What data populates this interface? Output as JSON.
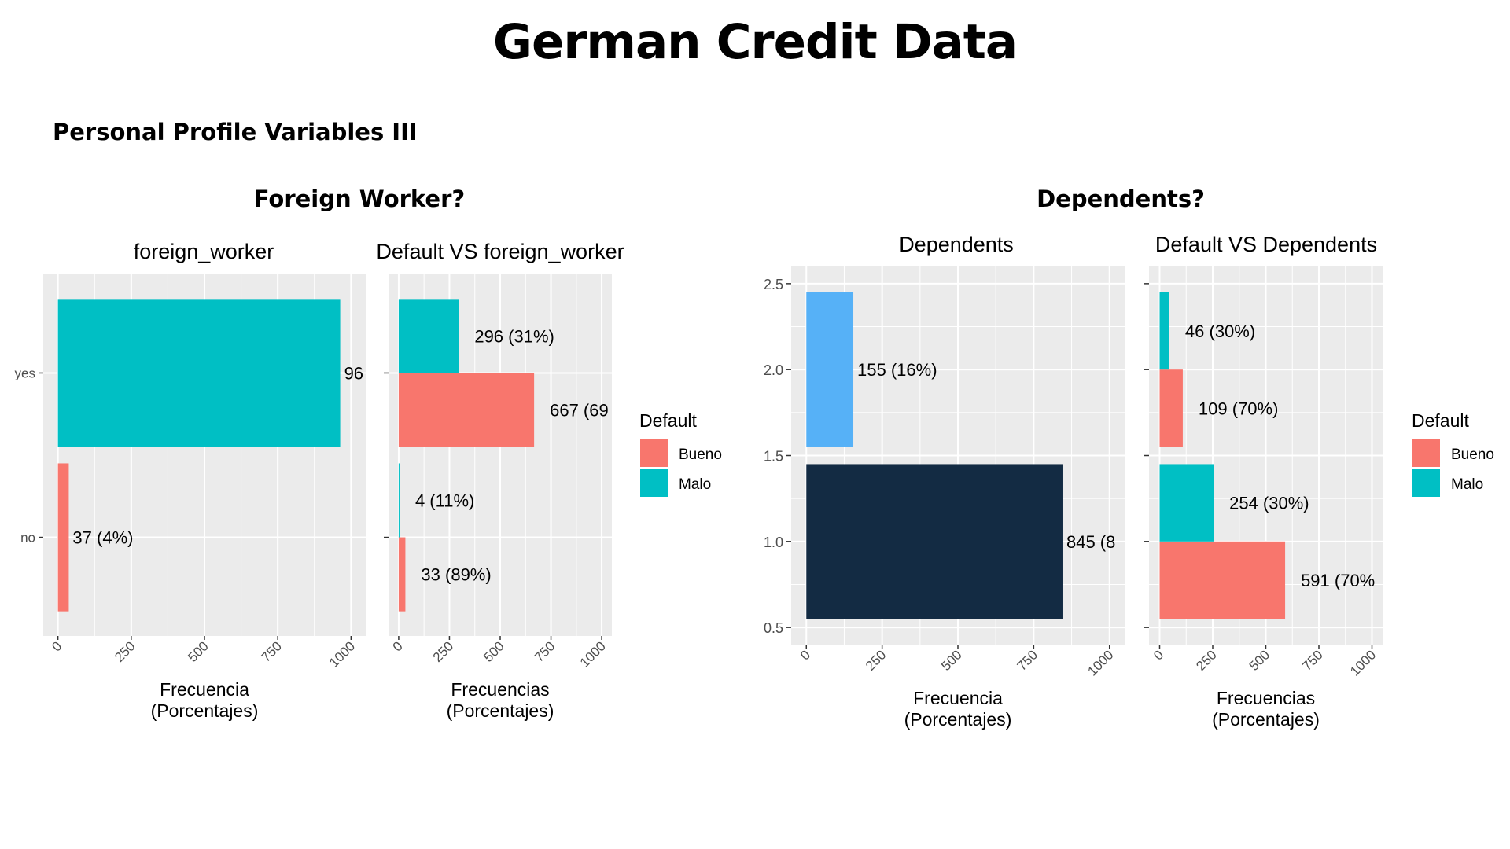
{
  "page": {
    "title": "German Credit Data",
    "subtitle": "Personal Profile Variables III",
    "sections": [
      {
        "title": "Foreign Worker?"
      },
      {
        "title": "Dependents?"
      }
    ]
  },
  "colors": {
    "bueno": "#F8766D",
    "malo": "#00BFC4",
    "dep_two": "#56B1F7",
    "dep_one": "#132B43",
    "panel": "#EBEBEB",
    "grid": "#FFFFFF",
    "axis_text": "#4D4D4D"
  },
  "chart_data": [
    {
      "type": "bar",
      "title": "foreign_worker",
      "xlabel": "Frecuencia\n(Porcentajes)",
      "ylabel": "",
      "orientation": "horizontal",
      "categories": [
        "no",
        "yes"
      ],
      "series": [
        {
          "values": [
            37,
            963
          ],
          "fills": [
            "bueno",
            "malo"
          ]
        }
      ],
      "data_labels": [
        "37 (4%)",
        "96"
      ],
      "xlim": [
        0,
        1000
      ],
      "xticks": [
        "0",
        "250",
        "500",
        "750",
        "1000"
      ],
      "grid": true
    },
    {
      "type": "bar",
      "title": "Default VS foreign_worker",
      "xlabel": "Frecuencias\n(Porcentajes)",
      "ylabel": "",
      "orientation": "horizontal",
      "position": "dodge",
      "categories": [
        "no",
        "yes"
      ],
      "series": [
        {
          "name": "Bueno",
          "values": [
            33,
            667
          ],
          "labels": [
            "33 (89%)",
            "667 (69"
          ]
        },
        {
          "name": "Malo",
          "values": [
            4,
            296
          ],
          "labels": [
            "4 (11%)",
            "296 (31%)"
          ]
        }
      ],
      "xlim": [
        0,
        1000
      ],
      "xticks": [
        "0",
        "250",
        "500",
        "750",
        "1000"
      ],
      "grid": true,
      "legend": {
        "title": "Default",
        "position": "right",
        "entries": [
          "Bueno",
          "Malo"
        ]
      }
    },
    {
      "type": "bar",
      "title": "Dependents",
      "xlabel": "Frecuencia\n(Porcentajes)",
      "ylabel": "",
      "orientation": "horizontal",
      "categories": [
        1,
        2
      ],
      "series": [
        {
          "values": [
            845,
            155
          ],
          "fills": [
            "dep_one",
            "dep_two"
          ]
        }
      ],
      "data_labels": [
        "845 (8",
        "155 (16%)"
      ],
      "ylim": [
        0.5,
        2.5
      ],
      "yticks": [
        "0.5",
        "1.0",
        "1.5",
        "2.0",
        "2.5"
      ],
      "xlim": [
        0,
        1000
      ],
      "xticks": [
        "0",
        "250",
        "500",
        "750",
        "1000"
      ],
      "grid": true
    },
    {
      "type": "bar",
      "title": "Default VS Dependents",
      "xlabel": "Frecuencias\n(Porcentajes)",
      "ylabel": "",
      "orientation": "horizontal",
      "position": "dodge",
      "categories": [
        1,
        2
      ],
      "series": [
        {
          "name": "Bueno",
          "values": [
            591,
            109
          ],
          "labels": [
            "591 (70%",
            "109 (70%)"
          ]
        },
        {
          "name": "Malo",
          "values": [
            254,
            46
          ],
          "labels": [
            "254 (30%)",
            "46 (30%)"
          ]
        }
      ],
      "xlim": [
        0,
        1000
      ],
      "xticks": [
        "0",
        "250",
        "500",
        "750",
        "1000"
      ],
      "grid": true,
      "legend": {
        "title": "Default",
        "position": "right",
        "entries": [
          "Bueno",
          "Malo"
        ]
      }
    }
  ]
}
